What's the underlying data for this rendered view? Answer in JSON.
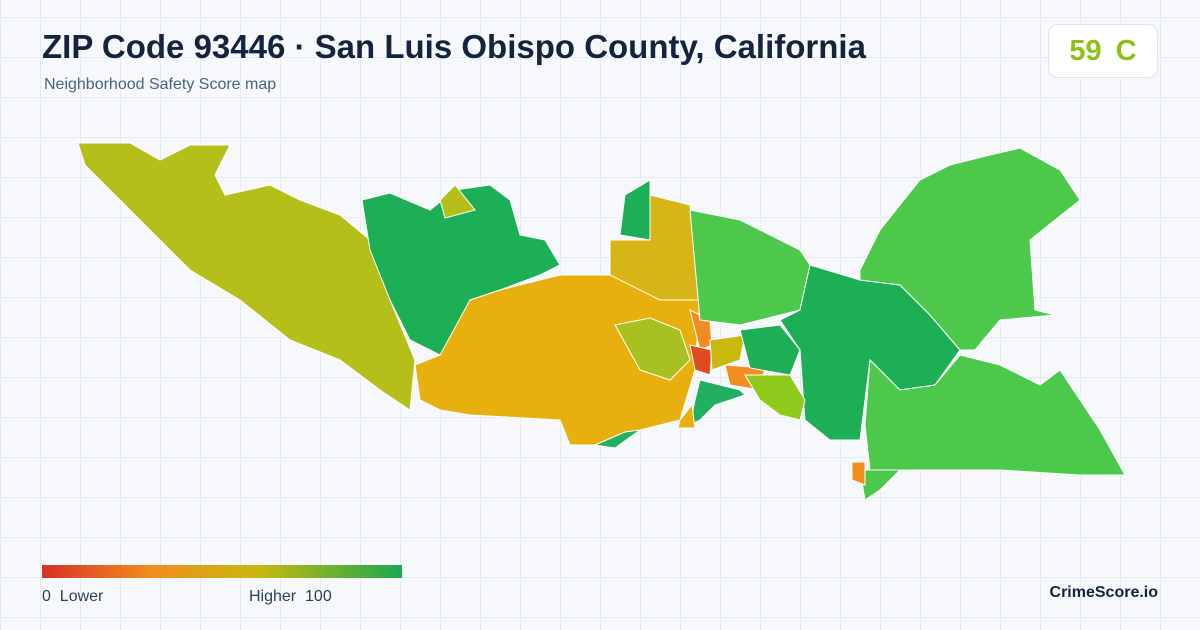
{
  "header": {
    "title": "ZIP Code 93446 · San Luis Obispo County, California",
    "subtitle": "Neighborhood Safety Score map"
  },
  "score": {
    "value": 59,
    "grade": "C"
  },
  "legend": {
    "min": 0,
    "min_label": "Lower",
    "max_label": "Higher",
    "max": 100
  },
  "footer": {
    "brand": "CrimeScore.io"
  }
}
